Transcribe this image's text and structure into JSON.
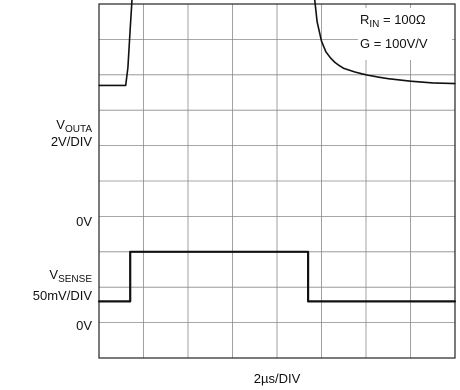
{
  "chart_data": {
    "type": "line",
    "x_divisions": 8,
    "y_divisions": 10,
    "grid": true,
    "legend_position": "top-right",
    "x_scale_label": "2µs/DIV",
    "annotation": {
      "line1_main": "R",
      "line1_sub": "IN",
      "line1_rest": " = 100Ω",
      "line2": "G = 100V/V"
    },
    "series": [
      {
        "label_main": "V",
        "label_sub": "OUTA",
        "scale": "2V/DIV",
        "zero_label": "0V",
        "zero_level_div": 2.3,
        "x_unit": "µs",
        "x": [
          0,
          1.2,
          1.3,
          1.4,
          1.5,
          1.6,
          1.7,
          1.8,
          2.0,
          2.5,
          4,
          6,
          8,
          9.4,
          9.5,
          9.6,
          9.7,
          9.8,
          10,
          10.2,
          10.4,
          10.6,
          10.8,
          11,
          11.5,
          12,
          12.5,
          13,
          14,
          15,
          16
        ],
        "y_div": [
          0,
          0,
          0.5,
          1.6,
          2.6,
          3.0,
          3.2,
          3.3,
          3.33,
          3.36,
          3.38,
          3.39,
          3.39,
          3.39,
          3.3,
          2.9,
          2.4,
          1.8,
          1.25,
          0.95,
          0.78,
          0.65,
          0.56,
          0.48,
          0.38,
          0.3,
          0.24,
          0.19,
          0.12,
          0.07,
          0.05
        ]
      },
      {
        "label_main": "V",
        "label_sub": "SENSE",
        "scale": "50mV/DIV",
        "zero_label": "0V",
        "zero_level_div": 8.4,
        "x_unit": "µs",
        "x": [
          0,
          1.4,
          1.4,
          9.4,
          9.4,
          16
        ],
        "y_div": [
          0,
          0,
          1.4,
          1.4,
          0,
          0
        ]
      }
    ]
  }
}
